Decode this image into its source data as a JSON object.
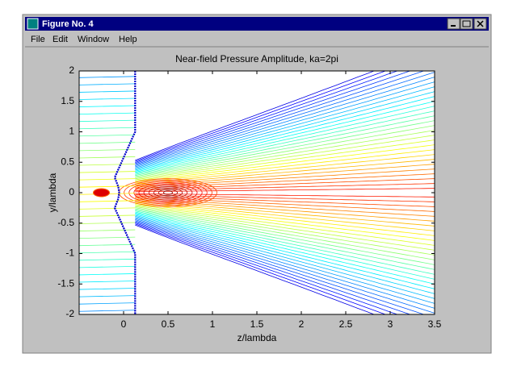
{
  "window": {
    "title": "Figure No. 4"
  },
  "menu": [
    "File",
    "Edit",
    "Window",
    "Help"
  ],
  "chart_data": {
    "type": "contour",
    "title": "Near-field Pressure Amplitude, ka=2pi",
    "xlabel": "z/lambda",
    "ylabel": "y/lambda",
    "xlim": [
      -0.5,
      3.5
    ],
    "ylim": [
      -2,
      2
    ],
    "xticks": [
      0,
      0.5,
      1,
      1.5,
      2,
      2.5,
      3,
      3.5
    ],
    "yticks": [
      -2,
      -1.5,
      -1,
      -0.5,
      0,
      0.5,
      1,
      1.5,
      2
    ],
    "series": [
      {
        "color": "#0000cc",
        "x": [
          0.13,
          0.13,
          -0.1,
          -0.06,
          -0.05,
          -0.06,
          -0.1,
          0.13,
          0.13
        ],
        "y": [
          2,
          1,
          0.25,
          0.1,
          0,
          -0.1,
          -0.25,
          -1,
          -2
        ]
      }
    ]
  }
}
